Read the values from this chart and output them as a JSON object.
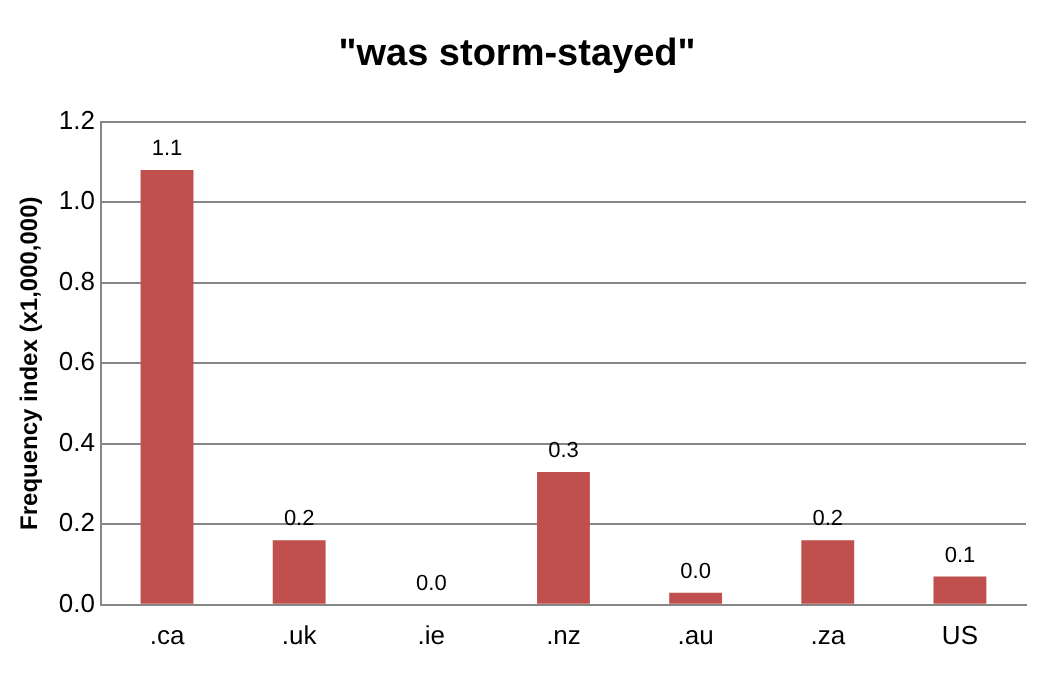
{
  "chart_data": {
    "type": "bar",
    "title": "\"was storm-stayed\"",
    "ylabel": "Frequency index (x1,000,000)",
    "categories": [
      ".ca",
      ".uk",
      ".ie",
      ".nz",
      ".au",
      ".za",
      "US"
    ],
    "values": [
      1.08,
      0.16,
      0,
      0.33,
      0.03,
      0.16,
      0.07
    ],
    "value_labels": [
      "1.1",
      "0.2",
      "0.0",
      "0.3",
      "0.0",
      "0.2",
      "0.1"
    ],
    "color": "#c0504d",
    "ylim": [
      0,
      1.2
    ],
    "yticks": [
      {
        "value": 0,
        "label": "0.0"
      },
      {
        "value": 0.2,
        "label": "0.2"
      },
      {
        "value": 0.4,
        "label": "0.4"
      },
      {
        "value": 0.6,
        "label": "0.6"
      },
      {
        "value": 0.8,
        "label": "0.8"
      },
      {
        "value": 1.0,
        "label": "1.0"
      },
      {
        "value": 1.2,
        "label": "1.2"
      }
    ],
    "grid": "y",
    "legend": false
  }
}
